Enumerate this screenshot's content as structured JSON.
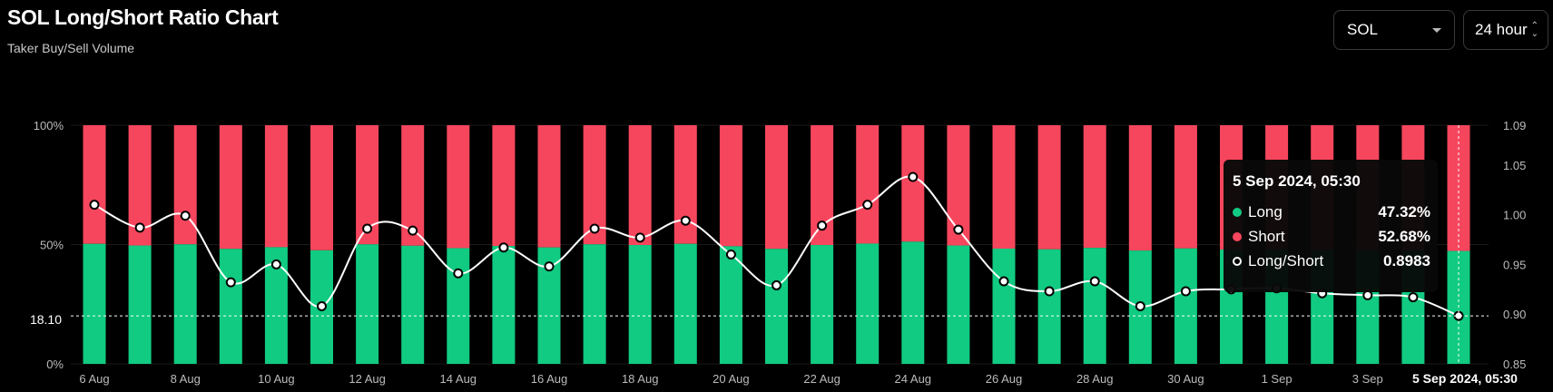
{
  "header": {
    "title": "SOL Long/Short Ratio Chart",
    "subtitle": "Taker Buy/Sell Volume"
  },
  "controls": {
    "coin_select": "SOL",
    "range_select": "24 hour"
  },
  "colors": {
    "long": "#10cb81",
    "short": "#f6465d",
    "line": "#ffffff",
    "background": "#000000"
  },
  "crosshair": {
    "y_label": "18.10",
    "time_label": "5 Sep 2024, 05:30"
  },
  "tooltip": {
    "title": "5 Sep 2024, 05:30",
    "rows": [
      {
        "label": "Long",
        "value": "47.32%",
        "color": "#10cb81"
      },
      {
        "label": "Short",
        "value": "52.68%",
        "color": "#f6465d"
      },
      {
        "label": "Long/Short",
        "value": "0.8983",
        "color": "#ffffff"
      }
    ]
  },
  "chart_data": {
    "type": "bar",
    "stacked_percent": true,
    "x": [
      "6 Aug",
      "7 Aug",
      "8 Aug",
      "9 Aug",
      "10 Aug",
      "11 Aug",
      "12 Aug",
      "13 Aug",
      "14 Aug",
      "15 Aug",
      "16 Aug",
      "17 Aug",
      "18 Aug",
      "19 Aug",
      "20 Aug",
      "21 Aug",
      "22 Aug",
      "23 Aug",
      "24 Aug",
      "25 Aug",
      "26 Aug",
      "27 Aug",
      "28 Aug",
      "29 Aug",
      "30 Aug",
      "31 Aug",
      "1 Sep",
      "2 Sep",
      "3 Sep",
      "4 Sep",
      "5 Sep"
    ],
    "x_tick_labels": [
      "6 Aug",
      "8 Aug",
      "10 Aug",
      "12 Aug",
      "14 Aug",
      "16 Aug",
      "18 Aug",
      "20 Aug",
      "22 Aug",
      "24 Aug",
      "26 Aug",
      "28 Aug",
      "30 Aug",
      "1 Sep",
      "3 Sep"
    ],
    "series": [
      {
        "name": "Long",
        "axis": "left",
        "values": [
          50.3,
          49.6,
          50.1,
          48.2,
          48.9,
          47.6,
          50.1,
          49.5,
          48.5,
          49.4,
          48.8,
          50.1,
          49.8,
          50.3,
          49.3,
          48.2,
          49.8,
          50.4,
          51.2,
          49.6,
          48.3,
          48.0,
          48.6,
          47.5,
          48.4,
          47.9,
          48.0,
          47.8,
          47.7,
          47.6,
          47.32
        ]
      },
      {
        "name": "Short",
        "axis": "left",
        "values": [
          49.7,
          50.4,
          49.9,
          51.8,
          51.1,
          52.4,
          49.9,
          50.5,
          51.5,
          50.6,
          51.2,
          49.9,
          50.2,
          49.7,
          50.7,
          51.8,
          50.2,
          49.6,
          48.8,
          50.4,
          51.7,
          52.0,
          51.4,
          52.5,
          51.6,
          52.1,
          52.0,
          52.2,
          52.3,
          52.4,
          52.68
        ]
      },
      {
        "name": "Long/Short",
        "type": "line",
        "axis": "right",
        "values": [
          1.01,
          0.987,
          0.999,
          0.932,
          0.95,
          0.908,
          0.986,
          0.984,
          0.941,
          0.967,
          0.948,
          0.986,
          0.977,
          0.994,
          0.96,
          0.929,
          0.989,
          1.01,
          1.038,
          0.985,
          0.933,
          0.923,
          0.933,
          0.908,
          0.923,
          0.925,
          0.926,
          0.921,
          0.919,
          0.917,
          0.8983
        ]
      }
    ],
    "y_left": {
      "ticks": [
        "0%",
        "50%",
        "100%"
      ],
      "ylim": [
        0,
        100
      ]
    },
    "y_right": {
      "ticks": [
        "0.85",
        "0.90",
        "0.95",
        "1.00",
        "1.05",
        "1.09"
      ],
      "ylim": [
        0.85,
        1.09
      ]
    },
    "hover_index": 30,
    "grid": true,
    "legend": "tooltip"
  }
}
